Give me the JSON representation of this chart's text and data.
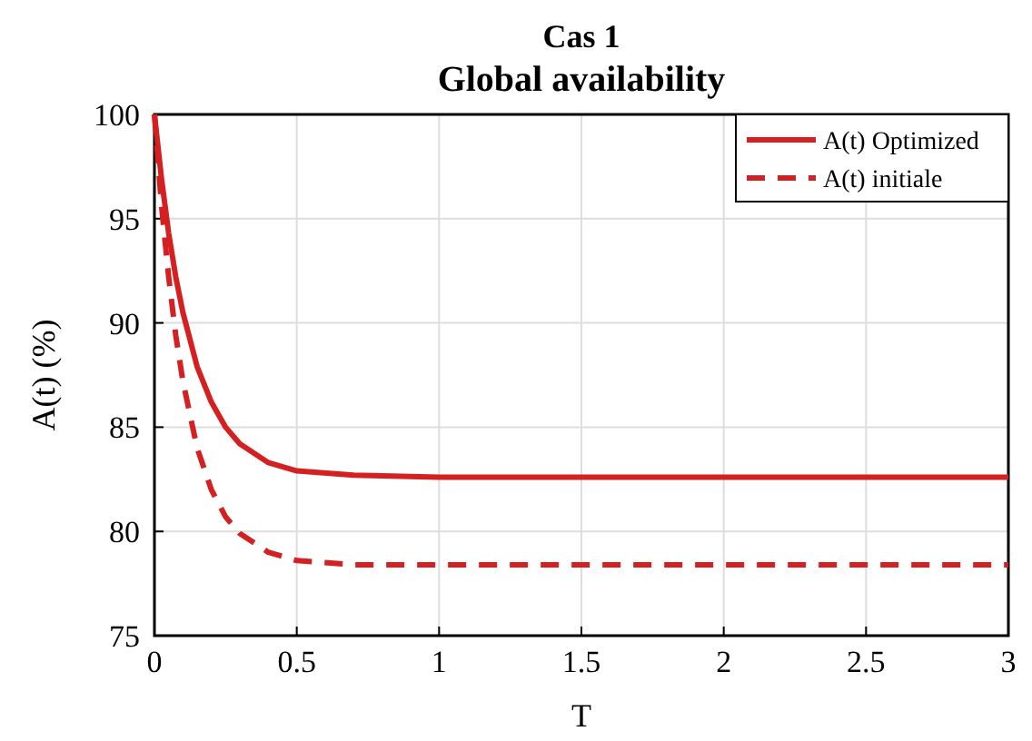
{
  "chart_data": {
    "type": "line",
    "title": "Cas 1",
    "subtitle": "Global availability",
    "xlabel": "T",
    "ylabel": "A(t) (%)",
    "x": [
      0,
      0.025,
      0.05,
      0.075,
      0.1,
      0.15,
      0.2,
      0.25,
      0.3,
      0.4,
      0.5,
      0.7,
      1,
      1.5,
      2,
      2.5,
      3
    ],
    "series": [
      {
        "name": "A(t) Optimized",
        "color": "#d42020",
        "line_style": "solid",
        "values": [
          100,
          96.9,
          94.3,
          92.2,
          90.5,
          87.9,
          86.2,
          85.0,
          84.2,
          83.3,
          82.9,
          82.7,
          82.6,
          82.6,
          82.6,
          82.6,
          82.6
        ]
      },
      {
        "name": "A(t) initiale",
        "color": "#d42020",
        "line_style": "dashed",
        "values": [
          100,
          95.6,
          92.2,
          89.4,
          87.2,
          84.0,
          82.0,
          80.7,
          79.9,
          79.0,
          78.6,
          78.4,
          78.4,
          78.4,
          78.4,
          78.4,
          78.4
        ]
      }
    ],
    "xlim": [
      0,
      3
    ],
    "xticks": [
      0,
      0.5,
      1,
      1.5,
      2,
      2.5,
      3
    ],
    "ylim": [
      75,
      100
    ],
    "yticks": [
      75,
      80,
      85,
      90,
      95,
      100
    ],
    "grid": true,
    "legend": "top right",
    "marker": "none"
  }
}
